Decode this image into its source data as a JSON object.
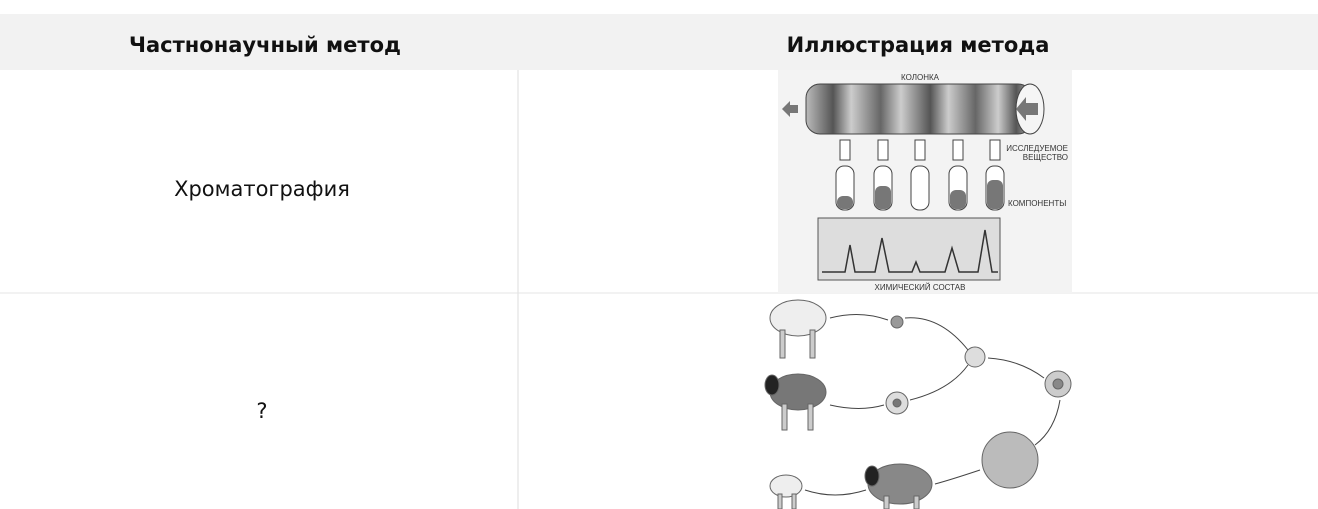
{
  "table": {
    "headers": [
      "Частнонаучный метод",
      "Иллюстрация метода"
    ],
    "rows": [
      {
        "method": "Хроматография"
      },
      {
        "method": "?"
      }
    ]
  },
  "illustrations": {
    "chromatography": {
      "column": "КОЛОНКА",
      "substance": [
        "ИССЛЕДУЕМОЕ",
        "ВЕЩЕСТВО"
      ],
      "components": "КОМПОНЕНТЫ",
      "composition": "ХИМИЧЕСКИЙ СОСТАВ"
    }
  }
}
